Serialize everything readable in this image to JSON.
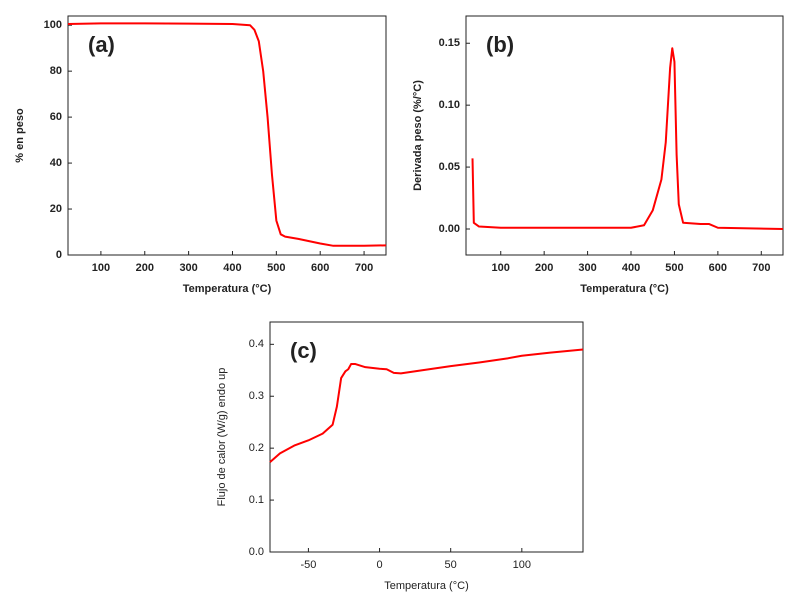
{
  "chart_data": [
    {
      "type": "line",
      "panel_label": "(a)",
      "xlabel": "Temperatura (°C)",
      "ylabel": "% en peso",
      "xlim": [
        25,
        750
      ],
      "ylim": [
        0,
        104
      ],
      "xticks": [
        100,
        200,
        300,
        400,
        500,
        600,
        700
      ],
      "yticks": [
        0,
        20,
        40,
        60,
        80,
        100
      ],
      "series": [
        {
          "color": "#ff0000",
          "x": [
            25,
            100,
            200,
            300,
            400,
            440,
            450,
            460,
            470,
            480,
            490,
            500,
            510,
            520,
            550,
            600,
            630,
            700,
            750
          ],
          "values": [
            100.5,
            100.8,
            100.8,
            100.7,
            100.5,
            100,
            98,
            93,
            80,
            60,
            35,
            15,
            9,
            8,
            7,
            5,
            4,
            4,
            4.2
          ]
        }
      ]
    },
    {
      "type": "line",
      "panel_label": "(b)",
      "xlabel": "Temperatura (°C)",
      "ylabel": "Derivada peso (%/°C)",
      "xlim": [
        20,
        750
      ],
      "ylim": [
        -0.021,
        0.172
      ],
      "xticks": [
        100,
        200,
        300,
        400,
        500,
        600,
        700
      ],
      "yticks": [
        {
          "value": 0,
          "label": "0.00"
        },
        {
          "value": 0.05,
          "label": "0.05"
        },
        {
          "value": 0.1,
          "label": "0.10"
        },
        {
          "value": 0.15,
          "label": "0.15"
        }
      ],
      "series": [
        {
          "color": "#ff0000",
          "x": [
            35,
            38,
            50,
            100,
            300,
            400,
            430,
            450,
            470,
            480,
            490,
            495,
            500,
            505,
            510,
            520,
            560,
            580,
            600,
            750
          ],
          "values": [
            0.057,
            0.005,
            0.002,
            0.001,
            0.001,
            0.001,
            0.003,
            0.015,
            0.04,
            0.07,
            0.13,
            0.146,
            0.135,
            0.06,
            0.02,
            0.005,
            0.004,
            0.004,
            0.001,
            0
          ]
        }
      ]
    },
    {
      "type": "line",
      "panel_label": "(c)",
      "xlabel": "Temperatura (°C)",
      "ylabel": "Flujo de calor (W/g) endo up",
      "xlim": [
        -77,
        143
      ],
      "ylim": [
        0,
        0.443
      ],
      "xticks": [
        -50,
        0,
        50,
        100
      ],
      "yticks": [
        {
          "value": 0,
          "label": "0.0"
        },
        {
          "value": 0.1,
          "label": "0.1"
        },
        {
          "value": 0.2,
          "label": "0.2"
        },
        {
          "value": 0.3,
          "label": "0.3"
        },
        {
          "value": 0.4,
          "label": "0.4"
        }
      ],
      "series": [
        {
          "color": "#ff0000",
          "x": [
            -77,
            -70,
            -60,
            -50,
            -40,
            -33,
            -30,
            -27,
            -24,
            -22,
            -20,
            -17,
            -10,
            0,
            5,
            10,
            15,
            30,
            50,
            70,
            90,
            100,
            120,
            143
          ],
          "values": [
            0.173,
            0.19,
            0.205,
            0.215,
            0.228,
            0.245,
            0.28,
            0.335,
            0.348,
            0.352,
            0.362,
            0.362,
            0.356,
            0.353,
            0.352,
            0.345,
            0.344,
            0.35,
            0.358,
            0.365,
            0.373,
            0.378,
            0.384,
            0.39
          ]
        }
      ]
    }
  ]
}
